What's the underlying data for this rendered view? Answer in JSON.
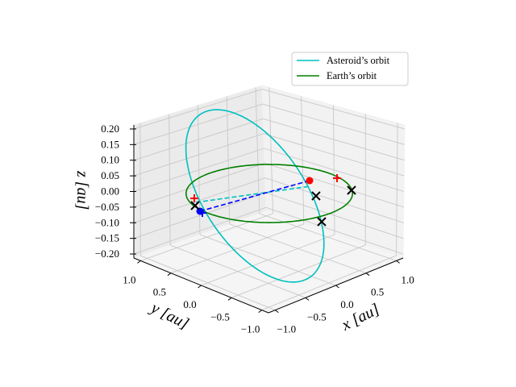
{
  "chart_data": {
    "type": "line",
    "projection": "3d",
    "title": "",
    "xlabel": "x [au]",
    "ylabel": "y [au]",
    "zlabel": "z [au]",
    "xlim": [
      -1.1,
      1.1
    ],
    "ylim": [
      -1.1,
      1.1
    ],
    "zlim": [
      -0.2,
      0.2
    ],
    "grid": true,
    "x_ticks": [
      "−1.0",
      "−0.5",
      "0.0",
      "0.5",
      "1.0"
    ],
    "y_ticks": [
      "1.0",
      "0.5",
      "0.0",
      "−0.5",
      "−1.0"
    ],
    "z_ticks": [
      "0.20",
      "0.15",
      "0.10",
      "0.05",
      "0.00",
      "−0.05",
      "−0.10",
      "−0.15",
      "−0.20"
    ],
    "legend": {
      "placement": "top-right",
      "entries": [
        {
          "label": "Asteroid’s orbit",
          "color": "#00bfbf"
        },
        {
          "label": "Earth’s orbit",
          "color": "#008000"
        }
      ]
    },
    "series": [
      {
        "name": "Asteroid’s orbit",
        "kind": "ellipse",
        "color": "#00bfbf",
        "center": [
          -0.064,
          0.18,
          0.0
        ],
        "u": [
          -0.697,
          -0.244,
          0.2
        ],
        "v": [
          0.933,
          -0.149,
          0.0
        ]
      },
      {
        "name": "Earth’s orbit",
        "kind": "circle",
        "color": "#008000",
        "center": [
          0,
          0,
          0
        ],
        "radius": 1.0
      }
    ],
    "lines": [
      {
        "name": "cyan-dashed-line",
        "color": "#00bfbf",
        "from": [
          -0.408,
          0.839,
          0
        ],
        "to": [
          0.173,
          -0.526,
          0
        ]
      },
      {
        "name": "blue-dashed-line",
        "color": "#0000ff",
        "from": [
          -0.158,
          1.02,
          0
        ],
        "to": [
          0.029,
          -0.656,
          0
        ]
      }
    ],
    "markers": [
      {
        "name": "red-dot-marker",
        "shape": "circle",
        "color": "#ff0000",
        "pos": [
          0.029,
          -0.656,
          0
        ]
      },
      {
        "name": "blue-dot-marker",
        "shape": "circle",
        "color": "#0000ff",
        "pos": [
          -0.158,
          1.02,
          0
        ]
      },
      {
        "name": "red-plus-marker",
        "shape": "plus",
        "color": "#ff0000",
        "pos": [
          0.203,
          -0.948,
          0
        ]
      },
      {
        "name": "red-plus-marker",
        "shape": "plus",
        "color": "#ff0000",
        "pos": [
          -0.519,
          0.755,
          0
        ]
      },
      {
        "name": "blue-plus-marker",
        "shape": "plus",
        "color": "#0000ff",
        "pos": [
          -0.098,
          1.039,
          0
        ]
      },
      {
        "name": "black-x-marker",
        "shape": "x",
        "color": "#000000",
        "pos": [
          0.456,
          -0.338,
          0
        ]
      },
      {
        "name": "black-x-marker",
        "shape": "x",
        "color": "#000000",
        "pos": [
          0.62,
          -0.777,
          0
        ]
      },
      {
        "name": "black-x-marker",
        "shape": "x",
        "color": "#000000",
        "pos": [
          1.131,
          0.241,
          0
        ]
      },
      {
        "name": "black-x-marker",
        "shape": "x",
        "color": "#000000",
        "pos": [
          -0.336,
          0.924,
          0
        ]
      }
    ]
  }
}
